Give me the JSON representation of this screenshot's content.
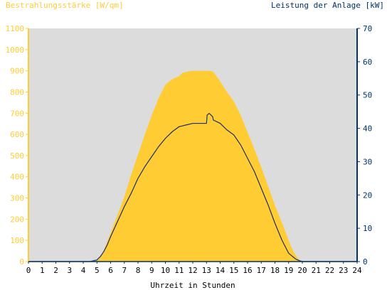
{
  "left_axis_title": "Bestrahlungsstärke [W/qm]",
  "right_axis_title": "Leistung der Anlage [kW]",
  "x_axis_title": "Uhrzeit in Stunden",
  "colors": {
    "plot_background": "#dcdcdc",
    "irradiance_fill": "#ffcc33",
    "power_line": "#1f2f66",
    "left_axis": "#ffcc33",
    "right_axis": "#003366",
    "x_axis_text": "#000000"
  },
  "chart_data": {
    "type": "area",
    "x_unit": "hours",
    "xlim": [
      0,
      24
    ],
    "x_ticks": [
      "0",
      "1",
      "2",
      "3",
      "4",
      "5",
      "6",
      "7",
      "8",
      "9",
      "10",
      "11",
      "12",
      "13",
      "14",
      "15",
      "16",
      "17",
      "18",
      "19",
      "20",
      "21",
      "22",
      "23",
      "24"
    ],
    "y_left": {
      "label": "Bestrahlungsstärke [W/qm]",
      "lim": [
        0,
        1100
      ],
      "ticks": [
        "0",
        "100",
        "200",
        "300",
        "400",
        "500",
        "600",
        "700",
        "800",
        "900",
        "1000",
        "1100"
      ]
    },
    "y_right": {
      "label": "Leistung der Anlage [kW]",
      "lim": [
        0,
        70
      ],
      "ticks": [
        "0",
        "10",
        "20",
        "30",
        "40",
        "50",
        "60",
        "70"
      ]
    },
    "grid": false,
    "series": [
      {
        "axis": "left",
        "style": "area",
        "x": [
          0,
          4.5,
          5,
          5.25,
          5.5,
          5.75,
          6,
          6.5,
          7,
          7.5,
          8,
          8.5,
          9,
          9.5,
          10,
          10.5,
          11,
          11.25,
          11.5,
          12,
          12.5,
          13,
          13.25,
          13.5,
          14,
          14.5,
          15,
          15.5,
          16,
          16.5,
          17,
          17.5,
          18,
          18.5,
          19,
          19.25,
          19.5,
          19.75,
          20,
          20.25,
          20.5,
          21,
          24
        ],
        "y": [
          0,
          0,
          5,
          20,
          50,
          95,
          135,
          220,
          305,
          410,
          505,
          600,
          690,
          770,
          835,
          860,
          875,
          890,
          895,
          900,
          900,
          900,
          900,
          895,
          850,
          800,
          755,
          690,
          610,
          530,
          445,
          355,
          265,
          185,
          100,
          60,
          30,
          10,
          3,
          1,
          0,
          0,
          0
        ]
      },
      {
        "axis": "right",
        "style": "line",
        "x": [
          0,
          4.5,
          5,
          5.25,
          5.5,
          5.75,
          6,
          6.5,
          7,
          7.5,
          8,
          8.5,
          9,
          9.5,
          10,
          10.5,
          11,
          11.5,
          12,
          12.5,
          13,
          13.05,
          13.2,
          13.45,
          13.5,
          14,
          14.5,
          15,
          15.5,
          16,
          16.5,
          17,
          17.5,
          18,
          18.5,
          19,
          19.5,
          19.75,
          20,
          20.25,
          20.5,
          21,
          24
        ],
        "y": [
          0,
          0,
          0.5,
          1.5,
          3,
          5,
          7.5,
          12,
          16.5,
          20.5,
          25,
          28.5,
          31.5,
          34.5,
          37,
          39,
          40.5,
          41,
          41.5,
          41.5,
          41.5,
          44,
          44.5,
          43.5,
          42.5,
          41.5,
          39.5,
          38,
          35,
          31,
          27,
          22,
          17,
          11.5,
          6.5,
          2.5,
          0.8,
          0.3,
          0,
          0,
          0,
          0,
          0
        ]
      }
    ]
  }
}
